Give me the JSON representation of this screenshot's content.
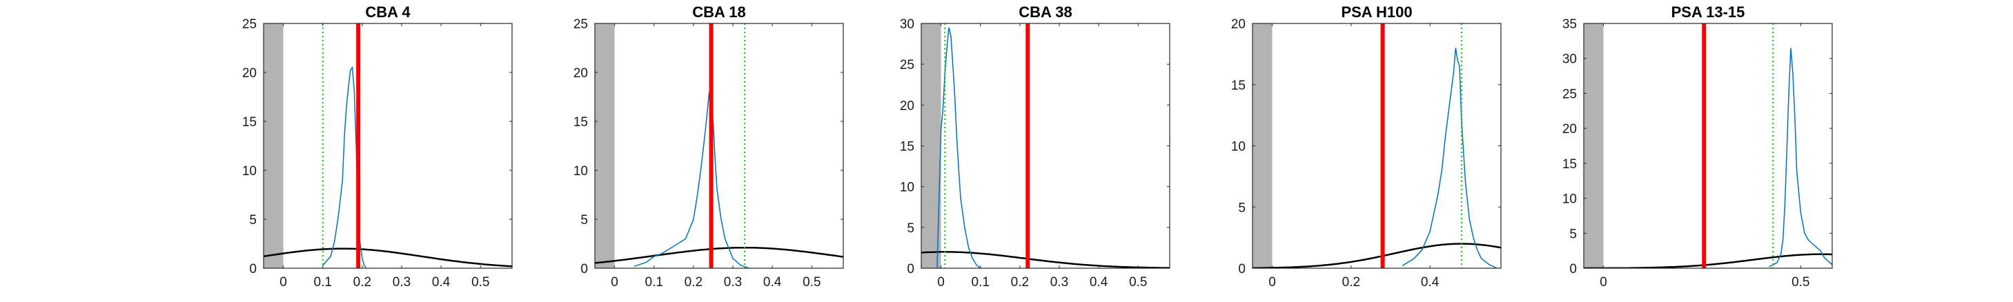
{
  "chart_data": [
    {
      "type": "line",
      "title": "CBA 4",
      "xlim": [
        -0.05,
        0.58
      ],
      "ylim": [
        0,
        25
      ],
      "xticks": [
        0,
        0.1,
        0.2,
        0.3,
        0.4,
        0.5
      ],
      "xtick_labels": [
        "0",
        "0.1",
        "0.2",
        "0.3",
        "0.4",
        "0.5"
      ],
      "yticks": [
        0,
        5,
        10,
        15,
        20,
        25
      ],
      "ytick_labels": [
        "0",
        "5",
        "10",
        "15",
        "20",
        "25"
      ],
      "grid": false,
      "shaded_region": [
        -0.05,
        0.0
      ],
      "red_line_x": 0.19,
      "green_dotted_x": 0.1,
      "histogram": {
        "color": "#0072BD",
        "x": [
          0.1,
          0.12,
          0.13,
          0.14,
          0.15,
          0.155,
          0.16,
          0.165,
          0.17,
          0.175,
          0.18,
          0.185,
          0.19,
          0.195,
          0.2,
          0.205,
          0.21
        ],
        "y": [
          0.3,
          1.2,
          2.8,
          5.5,
          9.0,
          13.5,
          16.5,
          18.5,
          20.2,
          20.5,
          18.0,
          12.0,
          4.5,
          2.5,
          1.0,
          0.3,
          0
        ]
      },
      "gaussian": {
        "color": "#000000",
        "mu": 0.15,
        "sigma": 0.2,
        "peak": 2.0
      }
    },
    {
      "type": "line",
      "title": "CBA 18",
      "xlim": [
        -0.05,
        0.58
      ],
      "ylim": [
        0,
        25
      ],
      "xticks": [
        0,
        0.1,
        0.2,
        0.3,
        0.4,
        0.5
      ],
      "xtick_labels": [
        "0",
        "0.1",
        "0.2",
        "0.3",
        "0.4",
        "0.5"
      ],
      "yticks": [
        0,
        5,
        10,
        15,
        20,
        25
      ],
      "ytick_labels": [
        "0",
        "5",
        "10",
        "15",
        "20",
        "25"
      ],
      "grid": false,
      "shaded_region": [
        -0.05,
        0.0
      ],
      "red_line_x": 0.245,
      "green_dotted_x": 0.33,
      "histogram": {
        "color": "#0072BD",
        "x": [
          0.05,
          0.08,
          0.1,
          0.12,
          0.14,
          0.16,
          0.18,
          0.2,
          0.21,
          0.22,
          0.23,
          0.235,
          0.24,
          0.245,
          0.25,
          0.255,
          0.26,
          0.27,
          0.28,
          0.29,
          0.3,
          0.32,
          0.34
        ],
        "y": [
          0.2,
          0.6,
          1.2,
          1.5,
          2.0,
          2.5,
          3.0,
          5.0,
          7.5,
          10.5,
          14.0,
          16.0,
          18.0,
          16.5,
          15.0,
          11.0,
          8.0,
          5.0,
          3.0,
          2.0,
          1.0,
          0.3,
          0
        ]
      },
      "gaussian": {
        "color": "#000000",
        "mu": 0.33,
        "sigma": 0.23,
        "peak": 2.1
      }
    },
    {
      "type": "line",
      "title": "CBA 38",
      "xlim": [
        -0.05,
        0.58
      ],
      "ylim": [
        0,
        30
      ],
      "xticks": [
        0,
        0.1,
        0.2,
        0.3,
        0.4,
        0.5
      ],
      "xtick_labels": [
        "0",
        "0.1",
        "0.2",
        "0.3",
        "0.4",
        "0.5"
      ],
      "yticks": [
        0,
        5,
        10,
        15,
        20,
        25,
        30
      ],
      "ytick_labels": [
        "0",
        "5",
        "10",
        "15",
        "20",
        "25",
        "30"
      ],
      "grid": false,
      "shaded_region": [
        -0.05,
        0.0
      ],
      "red_line_x": 0.22,
      "green_dotted_x": 0.01,
      "histogram": {
        "color": "#0072BD",
        "x": [
          -0.01,
          0.0,
          0.005,
          0.01,
          0.015,
          0.02,
          0.025,
          0.03,
          0.035,
          0.04,
          0.045,
          0.05,
          0.06,
          0.07,
          0.08,
          0.09,
          0.1
        ],
        "y": [
          0,
          17.0,
          19.5,
          24.0,
          27.0,
          29.5,
          28.5,
          25.0,
          21.0,
          16.0,
          12.0,
          8.5,
          5.0,
          2.5,
          1.2,
          0.4,
          0
        ]
      },
      "gaussian": {
        "color": "#000000",
        "mu": 0.01,
        "sigma": 0.2,
        "peak": 2.0
      }
    },
    {
      "type": "line",
      "title": "PSA H100",
      "xlim": [
        -0.05,
        0.58
      ],
      "ylim": [
        0,
        20
      ],
      "xticks": [
        0,
        0.2,
        0.4
      ],
      "xtick_labels": [
        "0",
        "0.2",
        "0.4"
      ],
      "yticks": [
        0,
        5,
        10,
        15,
        20
      ],
      "ytick_labels": [
        "0",
        "5",
        "10",
        "15",
        "20"
      ],
      "grid": false,
      "shaded_region": [
        -0.05,
        0.0
      ],
      "red_line_x": 0.28,
      "green_dotted_x": 0.48,
      "histogram": {
        "color": "#0072BD",
        "x": [
          0.33,
          0.36,
          0.38,
          0.4,
          0.41,
          0.42,
          0.43,
          0.44,
          0.45,
          0.46,
          0.465,
          0.47,
          0.475,
          0.48,
          0.49,
          0.5,
          0.51,
          0.52,
          0.53,
          0.55,
          0.57
        ],
        "y": [
          0.2,
          0.8,
          1.5,
          3.0,
          4.5,
          6.0,
          8.0,
          11.0,
          13.5,
          16.0,
          18.0,
          17.0,
          16.5,
          12.0,
          7.0,
          4.0,
          2.5,
          1.5,
          0.8,
          0.3,
          0
        ]
      },
      "gaussian": {
        "color": "#000000",
        "mu": 0.48,
        "sigma": 0.17,
        "peak": 2.0
      }
    },
    {
      "type": "line",
      "title": "PSA 13-15",
      "xlim": [
        -0.05,
        0.58
      ],
      "ylim": [
        0,
        35
      ],
      "xticks": [
        0,
        0.5
      ],
      "xtick_labels": [
        "0",
        "0.5"
      ],
      "yticks": [
        0,
        5,
        10,
        15,
        20,
        25,
        30,
        35
      ],
      "ytick_labels": [
        "0",
        "5",
        "10",
        "15",
        "20",
        "25",
        "30",
        "35"
      ],
      "grid": false,
      "shaded_region": [
        -0.05,
        0.0
      ],
      "red_line_x": 0.255,
      "green_dotted_x": 0.43,
      "histogram": {
        "color": "#0072BD",
        "x": [
          0.42,
          0.44,
          0.45,
          0.455,
          0.46,
          0.465,
          0.47,
          0.475,
          0.48,
          0.485,
          0.49,
          0.5,
          0.51,
          0.52,
          0.53,
          0.54,
          0.55,
          0.56,
          0.58
        ],
        "y": [
          0.2,
          0.8,
          2.0,
          4.0,
          9.0,
          17.0,
          25.0,
          31.5,
          28.0,
          22.0,
          14.0,
          8.0,
          5.0,
          4.0,
          3.5,
          3.0,
          2.5,
          1.5,
          0.5
        ]
      },
      "gaussian": {
        "color": "#000000",
        "mu": 0.55,
        "sigma": 0.17,
        "peak": 2.0
      }
    }
  ]
}
